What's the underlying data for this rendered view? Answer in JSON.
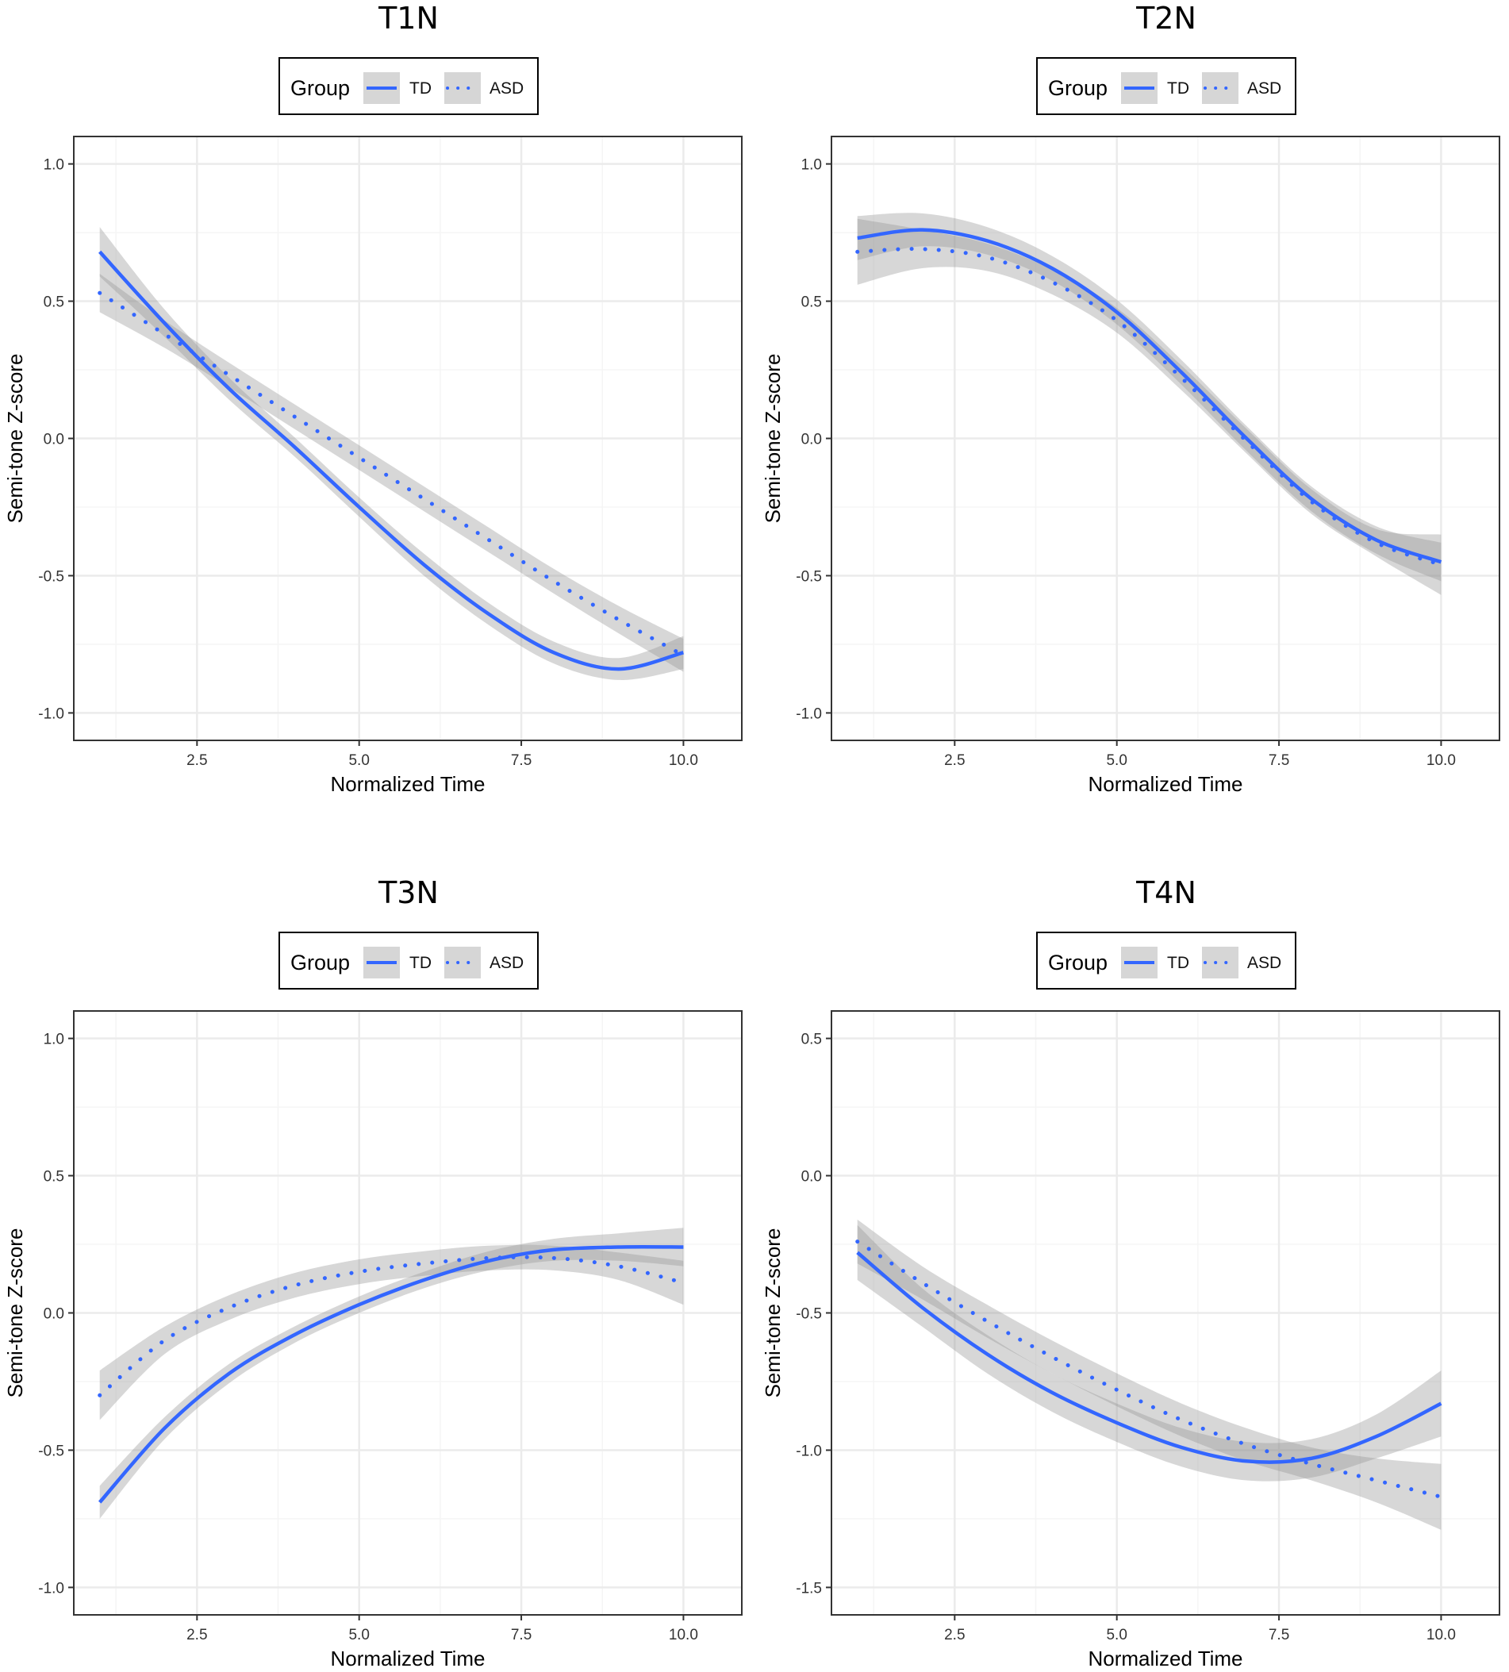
{
  "chart_data": [
    {
      "type": "line",
      "title": "T1N",
      "xlabel": "Normalized Time",
      "ylabel": "Semi-tone Z-score",
      "xlim": [
        0.6,
        10.9
      ],
      "ylim": [
        -1.1,
        1.1
      ],
      "xticks": [
        2.5,
        5.0,
        7.5,
        10.0
      ],
      "xtick_labels": [
        "2.5",
        "5.0",
        "7.5",
        "10.0"
      ],
      "yticks": [
        -1.0,
        -0.5,
        0.0,
        0.5,
        1.0
      ],
      "ytick_labels": [
        "-1.0",
        "-0.5",
        "0.0",
        "0.5",
        "1.0"
      ],
      "legend": {
        "title": "Group",
        "entries": [
          "TD",
          "ASD"
        ],
        "placement": "top"
      },
      "series": [
        {
          "name": "TD",
          "style": "solid",
          "x": [
            1,
            2,
            3,
            4,
            5,
            6,
            7,
            8,
            9,
            10
          ],
          "y": [
            0.68,
            0.42,
            0.18,
            -0.03,
            -0.25,
            -0.46,
            -0.64,
            -0.78,
            -0.84,
            -0.78
          ],
          "band": [
            0.09,
            0.05,
            0.04,
            0.035,
            0.035,
            0.04,
            0.04,
            0.04,
            0.04,
            0.06
          ]
        },
        {
          "name": "ASD",
          "style": "dotted",
          "x": [
            1,
            2,
            3,
            4,
            5,
            6,
            7,
            8,
            9,
            10
          ],
          "y": [
            0.53,
            0.38,
            0.23,
            0.08,
            -0.07,
            -0.22,
            -0.37,
            -0.52,
            -0.66,
            -0.79
          ],
          "band": [
            0.07,
            0.05,
            0.045,
            0.045,
            0.045,
            0.045,
            0.045,
            0.045,
            0.05,
            0.06
          ]
        }
      ]
    },
    {
      "type": "line",
      "title": "T2N",
      "xlabel": "Normalized Time",
      "ylabel": "Semi-tone Z-score",
      "xlim": [
        0.6,
        10.9
      ],
      "ylim": [
        -1.1,
        1.1
      ],
      "xticks": [
        2.5,
        5.0,
        7.5,
        10.0
      ],
      "xtick_labels": [
        "2.5",
        "5.0",
        "7.5",
        "10.0"
      ],
      "yticks": [
        -1.0,
        -0.5,
        0.0,
        0.5,
        1.0
      ],
      "ytick_labels": [
        "-1.0",
        "-0.5",
        "0.0",
        "0.5",
        "1.0"
      ],
      "legend": {
        "title": "Group",
        "entries": [
          "TD",
          "ASD"
        ],
        "placement": "top"
      },
      "series": [
        {
          "name": "TD",
          "style": "solid",
          "x": [
            1,
            2,
            3,
            4,
            5,
            6,
            7,
            8,
            9,
            10
          ],
          "y": [
            0.73,
            0.76,
            0.72,
            0.62,
            0.46,
            0.24,
            0.0,
            -0.22,
            -0.37,
            -0.45
          ],
          "band": [
            0.08,
            0.06,
            0.05,
            0.045,
            0.045,
            0.045,
            0.045,
            0.045,
            0.05,
            0.07
          ]
        },
        {
          "name": "ASD",
          "style": "dotted",
          "x": [
            1,
            2,
            3,
            4,
            5,
            6,
            7,
            8,
            9,
            10
          ],
          "y": [
            0.68,
            0.69,
            0.66,
            0.57,
            0.43,
            0.22,
            -0.01,
            -0.23,
            -0.38,
            -0.46
          ],
          "band": [
            0.12,
            0.07,
            0.05,
            0.045,
            0.045,
            0.045,
            0.045,
            0.045,
            0.05,
            0.11
          ]
        }
      ]
    },
    {
      "type": "line",
      "title": "T3N",
      "xlabel": "Normalized Time",
      "ylabel": "Semi-tone Z-score",
      "xlim": [
        0.6,
        10.9
      ],
      "ylim": [
        -1.1,
        1.1
      ],
      "xticks": [
        2.5,
        5.0,
        7.5,
        10.0
      ],
      "xtick_labels": [
        "2.5",
        "5.0",
        "7.5",
        "10.0"
      ],
      "yticks": [
        -1.0,
        -0.5,
        0.0,
        0.5,
        1.0
      ],
      "ytick_labels": [
        "-1.0",
        "-0.5",
        "0.0",
        "0.5",
        "1.0"
      ],
      "legend": {
        "title": "Group",
        "entries": [
          "TD",
          "ASD"
        ],
        "placement": "top"
      },
      "series": [
        {
          "name": "TD",
          "style": "solid",
          "x": [
            1,
            2,
            3,
            4,
            5,
            6,
            7,
            8,
            9,
            10
          ],
          "y": [
            -0.69,
            -0.42,
            -0.22,
            -0.08,
            0.03,
            0.12,
            0.19,
            0.23,
            0.24,
            0.24
          ],
          "band": [
            0.06,
            0.04,
            0.035,
            0.03,
            0.03,
            0.03,
            0.035,
            0.04,
            0.05,
            0.07
          ]
        },
        {
          "name": "ASD",
          "style": "dotted",
          "x": [
            1,
            2,
            3,
            4,
            5,
            6,
            7,
            8,
            9,
            10
          ],
          "y": [
            -0.3,
            -0.1,
            0.02,
            0.1,
            0.15,
            0.18,
            0.2,
            0.2,
            0.17,
            0.11
          ],
          "band": [
            0.09,
            0.05,
            0.045,
            0.045,
            0.045,
            0.045,
            0.045,
            0.045,
            0.05,
            0.08
          ]
        }
      ]
    },
    {
      "type": "line",
      "title": "T4N",
      "xlabel": "Normalized Time",
      "ylabel": "Semi-tone Z-score",
      "xlim": [
        0.6,
        10.9
      ],
      "ylim": [
        -1.6,
        0.6
      ],
      "xticks": [
        2.5,
        5.0,
        7.5,
        10.0
      ],
      "xtick_labels": [
        "2.5",
        "5.0",
        "7.5",
        "10.0"
      ],
      "yticks": [
        -1.5,
        -1.0,
        -0.5,
        0.0,
        0.5
      ],
      "ytick_labels": [
        "-1.5",
        "-1.0",
        "-0.5",
        "0.0",
        "0.5"
      ],
      "legend": {
        "title": "Group",
        "entries": [
          "TD",
          "ASD"
        ],
        "placement": "top"
      },
      "series": [
        {
          "name": "TD",
          "style": "solid",
          "x": [
            1,
            2,
            3,
            4,
            5,
            6,
            7,
            8,
            9,
            10
          ],
          "y": [
            -0.28,
            -0.48,
            -0.65,
            -0.79,
            -0.9,
            -0.99,
            -1.04,
            -1.03,
            -0.95,
            -0.83
          ],
          "band": [
            0.1,
            0.07,
            0.07,
            0.07,
            0.07,
            0.07,
            0.07,
            0.07,
            0.08,
            0.12
          ]
        },
        {
          "name": "ASD",
          "style": "dotted",
          "x": [
            1,
            2,
            3,
            4,
            5,
            6,
            7,
            8,
            9,
            10
          ],
          "y": [
            -0.24,
            -0.39,
            -0.53,
            -0.66,
            -0.78,
            -0.89,
            -0.98,
            -1.05,
            -1.11,
            -1.17
          ],
          "band": [
            0.08,
            0.06,
            0.06,
            0.06,
            0.06,
            0.06,
            0.06,
            0.06,
            0.08,
            0.12
          ]
        }
      ]
    }
  ]
}
